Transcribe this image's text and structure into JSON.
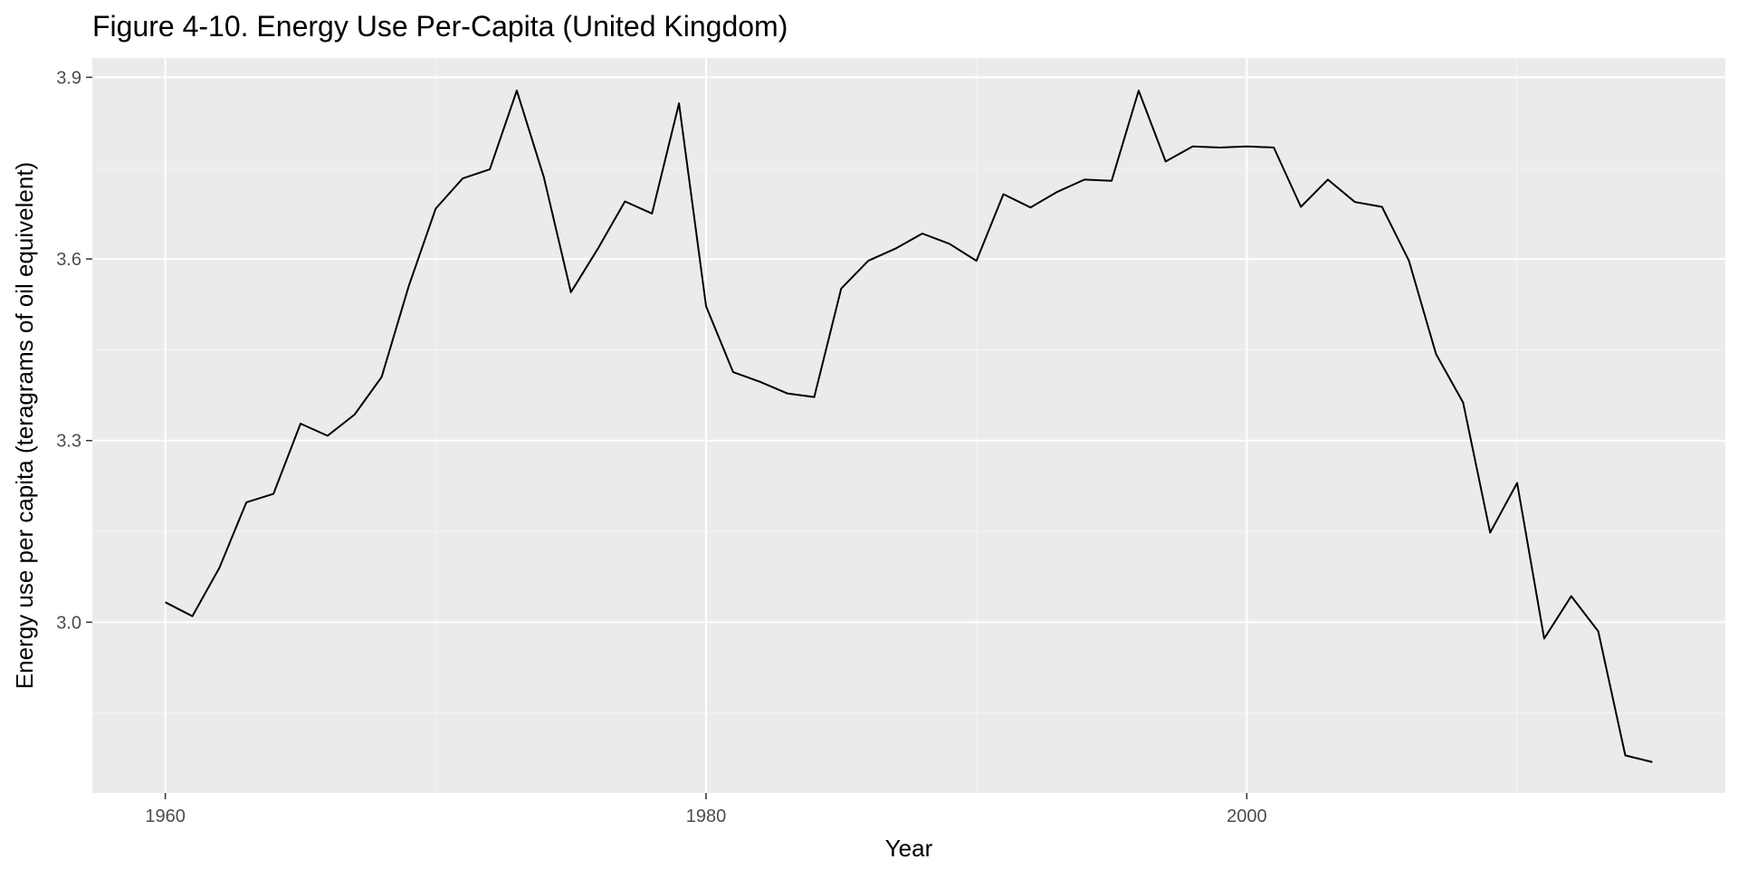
{
  "chart_data": {
    "type": "line",
    "title": "Figure 4-10. Energy Use Per-Capita (United Kingdom)",
    "xlabel": "Year",
    "ylabel": "Energy use per capita (teragrams of oil equivelent)",
    "xlim": [
      1957.3,
      2017.7
    ],
    "ylim": [
      2.718,
      3.932
    ],
    "x_ticks": [
      1960,
      1980,
      2000
    ],
    "x_tick_labels": [
      "1960",
      "1980",
      "2000"
    ],
    "y_ticks": [
      3.0,
      3.3,
      3.6,
      3.9
    ],
    "y_tick_labels": [
      "3.0",
      "3.3",
      "3.6",
      "3.9"
    ],
    "x_minor_ticks": [
      1970,
      1990,
      2010
    ],
    "y_minor_ticks": [
      2.85,
      3.15,
      3.45,
      3.75
    ],
    "grid": true,
    "legend": "none",
    "series": [
      {
        "color": "#000000",
        "x": [
          1960,
          1961,
          1962,
          1963,
          1964,
          1965,
          1966,
          1967,
          1968,
          1969,
          1970,
          1971,
          1972,
          1973,
          1974,
          1975,
          1976,
          1977,
          1978,
          1979,
          1980,
          1981,
          1982,
          1983,
          1984,
          1985,
          1986,
          1987,
          1988,
          1989,
          1990,
          1991,
          1992,
          1993,
          1994,
          1995,
          1996,
          1997,
          1998,
          1999,
          2000,
          2001,
          2002,
          2003,
          2004,
          2005,
          2006,
          2007,
          2008,
          2009,
          2010,
          2011,
          2012,
          2013,
          2014,
          2015
        ],
        "y": [
          3.033,
          3.01,
          3.09,
          3.198,
          3.212,
          3.328,
          3.308,
          3.343,
          3.405,
          3.555,
          3.683,
          3.733,
          3.748,
          3.878,
          3.735,
          3.545,
          3.617,
          3.695,
          3.675,
          3.857,
          3.522,
          3.413,
          3.397,
          3.378,
          3.372,
          3.551,
          3.597,
          3.617,
          3.642,
          3.625,
          3.597,
          3.707,
          3.685,
          3.711,
          3.731,
          3.729,
          3.878,
          3.761,
          3.786,
          3.784,
          3.786,
          3.784,
          3.686,
          3.731,
          3.694,
          3.686,
          3.597,
          3.443,
          3.363,
          3.148,
          3.23,
          2.973,
          3.043,
          2.985,
          2.78,
          2.769
        ]
      }
    ]
  },
  "colors": {
    "panel_background": "#ebebeb",
    "grid_major": "#ffffff",
    "grid_minor": "#f5f5f5",
    "line": "#000000",
    "tick_text": "#4d4d4d"
  }
}
